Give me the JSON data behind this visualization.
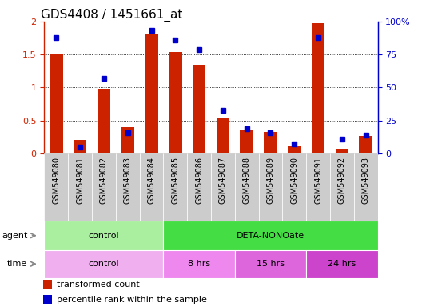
{
  "title": "GDS4408 / 1451661_at",
  "samples": [
    "GSM549080",
    "GSM549081",
    "GSM549082",
    "GSM549083",
    "GSM549084",
    "GSM549085",
    "GSM549086",
    "GSM549087",
    "GSM549088",
    "GSM549089",
    "GSM549090",
    "GSM549091",
    "GSM549092",
    "GSM549093"
  ],
  "red_values": [
    1.52,
    0.2,
    0.98,
    0.4,
    1.8,
    1.54,
    1.35,
    0.53,
    0.36,
    0.33,
    0.12,
    1.98,
    0.07,
    0.27
  ],
  "blue_values_pct": [
    88,
    5,
    57,
    16,
    93,
    86,
    79,
    33,
    19,
    16,
    7,
    88,
    11,
    14
  ],
  "ylim_left": [
    0,
    2
  ],
  "ylim_right": [
    0,
    100
  ],
  "yticks_left": [
    0,
    0.5,
    1.0,
    1.5,
    2.0
  ],
  "ytick_labels_left": [
    "0",
    "0.5",
    "1",
    "1.5",
    "2"
  ],
  "yticks_right": [
    0,
    25,
    50,
    75,
    100
  ],
  "ytick_labels_right": [
    "0",
    "25",
    "50",
    "75",
    "100%"
  ],
  "agent_groups": [
    {
      "label": "control",
      "start": 0,
      "end": 5,
      "color": "#aaeea0"
    },
    {
      "label": "DETA-NONOate",
      "start": 5,
      "end": 14,
      "color": "#44dd44"
    }
  ],
  "time_groups": [
    {
      "label": "control",
      "start": 0,
      "end": 5,
      "color": "#f0b0f0"
    },
    {
      "label": "8 hrs",
      "start": 5,
      "end": 8,
      "color": "#ee88ee"
    },
    {
      "label": "15 hrs",
      "start": 8,
      "end": 11,
      "color": "#dd66dd"
    },
    {
      "label": "24 hrs",
      "start": 11,
      "end": 14,
      "color": "#cc44cc"
    }
  ],
  "bar_color": "#cc2200",
  "dot_color": "#0000cc",
  "legend_items": [
    {
      "color": "#cc2200",
      "label": "transformed count"
    },
    {
      "color": "#0000cc",
      "label": "percentile rank within the sample"
    }
  ],
  "bg_color": "#cccccc",
  "title_fontsize": 11,
  "axis_color_left": "#cc2200",
  "axis_color_right": "#0000cc",
  "bar_width": 0.55
}
